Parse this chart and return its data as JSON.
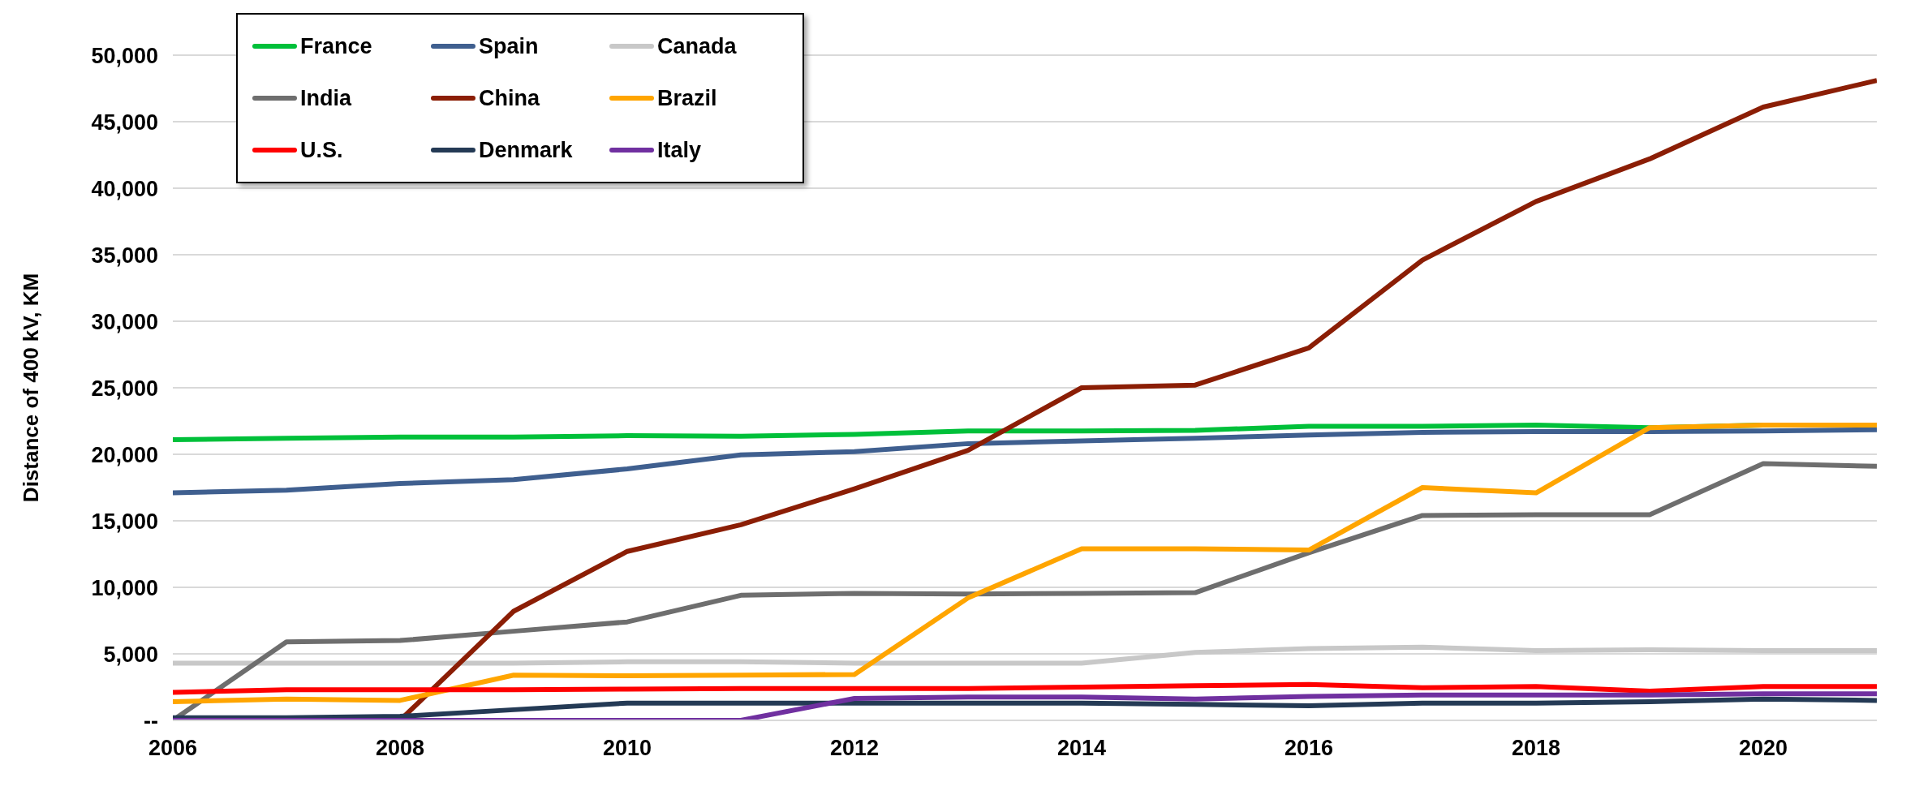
{
  "chart_data": {
    "type": "line",
    "ylabel": "Distance of 400 kV, KM",
    "x": [
      2006,
      2007,
      2008,
      2009,
      2010,
      2011,
      2012,
      2013,
      2014,
      2015,
      2016,
      2017,
      2018,
      2019,
      2020,
      2021
    ],
    "series": [
      {
        "name": "France",
        "color": "#00c03a",
        "values": [
          21100,
          21200,
          21300,
          21300,
          21400,
          21350,
          21500,
          21750,
          21750,
          21800,
          22100,
          22100,
          22200,
          22000,
          22200,
          22200
        ]
      },
      {
        "name": "Spain",
        "color": "#3f5f8f",
        "values": [
          17100,
          17300,
          17800,
          18100,
          18900,
          19950,
          20200,
          20800,
          21000,
          21200,
          21450,
          21650,
          21700,
          21700,
          21750,
          21850
        ]
      },
      {
        "name": "Canada",
        "color": "#c8c8c8",
        "values": [
          4300,
          4300,
          4300,
          4300,
          4400,
          4400,
          4300,
          4300,
          4300,
          5100,
          5400,
          5500,
          5250,
          5300,
          5250,
          5250
        ]
      },
      {
        "name": "India",
        "color": "#6e6e6e",
        "values": [
          0,
          5900,
          6000,
          6700,
          7400,
          9400,
          9550,
          9500,
          9550,
          9600,
          12600,
          15400,
          15450,
          15450,
          19300,
          19100
        ]
      },
      {
        "name": "China",
        "color": "#8b1e05",
        "values": [
          null,
          null,
          0,
          8200,
          12700,
          14700,
          17400,
          20300,
          25000,
          25200,
          28000,
          34600,
          39000,
          42200,
          46100,
          48100
        ]
      },
      {
        "name": "Brazil",
        "color": "#ffa500",
        "values": [
          1400,
          1600,
          1500,
          3400,
          3350,
          3400,
          3450,
          9200,
          12900,
          12900,
          12800,
          17500,
          17100,
          22000,
          22200,
          22200
        ]
      },
      {
        "name": "U.S.",
        "color": "#ff0000",
        "values": [
          2100,
          2300,
          2300,
          2300,
          2350,
          2400,
          2400,
          2400,
          2500,
          2600,
          2700,
          2450,
          2550,
          2200,
          2550,
          2550
        ]
      },
      {
        "name": "Denmark",
        "color": "#243a55",
        "values": [
          200,
          200,
          300,
          800,
          1300,
          1300,
          1300,
          1300,
          1300,
          1200,
          1100,
          1300,
          1300,
          1400,
          1600,
          1500
        ]
      },
      {
        "name": "Italy",
        "color": "#7030a0",
        "values": [
          0,
          0,
          0,
          0,
          0,
          0,
          1650,
          1750,
          1750,
          1600,
          1800,
          1900,
          1900,
          1900,
          2000,
          2000
        ]
      }
    ],
    "xlim": [
      2006,
      2021
    ],
    "xticks": [
      2006,
      2008,
      2010,
      2012,
      2014,
      2016,
      2018,
      2020
    ],
    "ylim": [
      0,
      50000
    ],
    "yticks": [
      {
        "value": 0,
        "label": "--"
      },
      {
        "value": 5000,
        "label": "5,000"
      },
      {
        "value": 10000,
        "label": "10,000"
      },
      {
        "value": 15000,
        "label": "15,000"
      },
      {
        "value": 20000,
        "label": "20,000"
      },
      {
        "value": 25000,
        "label": "25,000"
      },
      {
        "value": 30000,
        "label": "30,000"
      },
      {
        "value": 35000,
        "label": "35,000"
      },
      {
        "value": 40000,
        "label": "40,000"
      },
      {
        "value": 45000,
        "label": "45,000"
      },
      {
        "value": 50000,
        "label": "50,000"
      }
    ],
    "grid": "y",
    "legend": "top left",
    "marker": "none",
    "line_style": "solid"
  }
}
